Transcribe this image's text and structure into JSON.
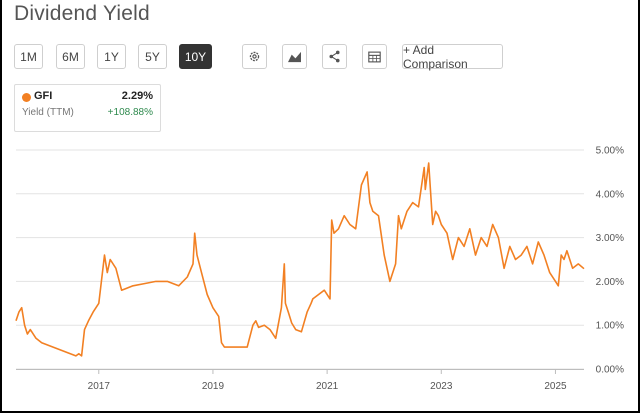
{
  "page": {
    "title": "Dividend Yield"
  },
  "toolbar": {
    "ranges": [
      {
        "label": "1M",
        "active": false
      },
      {
        "label": "6M",
        "active": false
      },
      {
        "label": "1Y",
        "active": false
      },
      {
        "label": "5Y",
        "active": false
      },
      {
        "label": "10Y",
        "active": true
      }
    ],
    "icons": [
      "gear-icon",
      "chart-type-icon",
      "share-icon",
      "table-icon"
    ],
    "add_comparison": "+ Add Comparison"
  },
  "legend_card": {
    "ticker": "GFI",
    "value": "2.29%",
    "subtitle": "Yield (TTM)",
    "change": "+108.88%",
    "series_color": "#f28023",
    "change_color": "#2f8a4e"
  },
  "chart_data": {
    "type": "line",
    "title": "",
    "xlabel": "",
    "ylabel": "",
    "ylim": [
      0,
      5
    ],
    "yticks": [
      "0.00%",
      "1.00%",
      "2.00%",
      "3.00%",
      "4.00%",
      "5.00%"
    ],
    "xticks": [
      "2017",
      "2019",
      "2021",
      "2023",
      "2025"
    ],
    "xlim": [
      2015.55,
      2025.5
    ],
    "grid": true,
    "series": [
      {
        "color": "#f28023",
        "x": [
          2015.55,
          2015.6,
          2015.65,
          2015.7,
          2015.75,
          2015.8,
          2015.9,
          2016.0,
          2016.2,
          2016.4,
          2016.6,
          2016.65,
          2016.7,
          2016.75,
          2016.82,
          2016.9,
          2017.0,
          2017.1,
          2017.15,
          2017.2,
          2017.3,
          2017.4,
          2017.6,
          2017.8,
          2018.0,
          2018.2,
          2018.4,
          2018.55,
          2018.65,
          2018.68,
          2018.72,
          2018.8,
          2018.9,
          2019.0,
          2019.1,
          2019.15,
          2019.2,
          2019.4,
          2019.6,
          2019.7,
          2019.75,
          2019.8,
          2019.9,
          2020.0,
          2020.1,
          2020.2,
          2020.25,
          2020.27,
          2020.32,
          2020.38,
          2020.45,
          2020.55,
          2020.65,
          2020.72,
          2020.75,
          2020.85,
          2020.95,
          2021.05,
          2021.08,
          2021.12,
          2021.2,
          2021.3,
          2021.4,
          2021.5,
          2021.6,
          2021.7,
          2021.75,
          2021.8,
          2021.9,
          2022.0,
          2022.1,
          2022.2,
          2022.25,
          2022.3,
          2022.4,
          2022.5,
          2022.6,
          2022.7,
          2022.72,
          2022.78,
          2022.85,
          2022.9,
          2022.95,
          2023.0,
          2023.1,
          2023.2,
          2023.3,
          2023.4,
          2023.5,
          2023.6,
          2023.7,
          2023.8,
          2023.9,
          2024.0,
          2024.1,
          2024.2,
          2024.3,
          2024.4,
          2024.5,
          2024.6,
          2024.7,
          2024.8,
          2024.9,
          2025.0,
          2025.05,
          2025.1,
          2025.15,
          2025.2,
          2025.3,
          2025.4,
          2025.5
        ],
        "values": [
          1.1,
          1.3,
          1.4,
          1.0,
          0.8,
          0.9,
          0.7,
          0.6,
          0.5,
          0.4,
          0.3,
          0.35,
          0.3,
          0.9,
          1.1,
          1.3,
          1.5,
          2.6,
          2.2,
          2.5,
          2.3,
          1.8,
          1.9,
          1.95,
          2.0,
          2.0,
          1.9,
          2.1,
          2.4,
          3.1,
          2.6,
          2.2,
          1.7,
          1.4,
          1.2,
          0.6,
          0.5,
          0.5,
          0.5,
          1.0,
          1.1,
          0.95,
          1.0,
          0.9,
          0.7,
          1.4,
          2.4,
          1.5,
          1.3,
          1.05,
          0.9,
          0.85,
          1.3,
          1.5,
          1.6,
          1.7,
          1.8,
          1.6,
          3.4,
          3.1,
          3.2,
          3.5,
          3.3,
          3.2,
          4.2,
          4.5,
          3.8,
          3.6,
          3.5,
          2.6,
          2.0,
          2.4,
          3.5,
          3.2,
          3.6,
          3.8,
          3.7,
          4.6,
          4.1,
          4.7,
          3.3,
          3.6,
          3.5,
          3.3,
          3.1,
          2.5,
          3.0,
          2.8,
          3.2,
          2.6,
          3.0,
          2.8,
          3.3,
          3.0,
          2.3,
          2.8,
          2.5,
          2.6,
          2.8,
          2.4,
          2.9,
          2.6,
          2.2,
          2.0,
          1.9,
          2.6,
          2.5,
          2.7,
          2.3,
          2.4,
          2.29
        ]
      }
    ]
  }
}
